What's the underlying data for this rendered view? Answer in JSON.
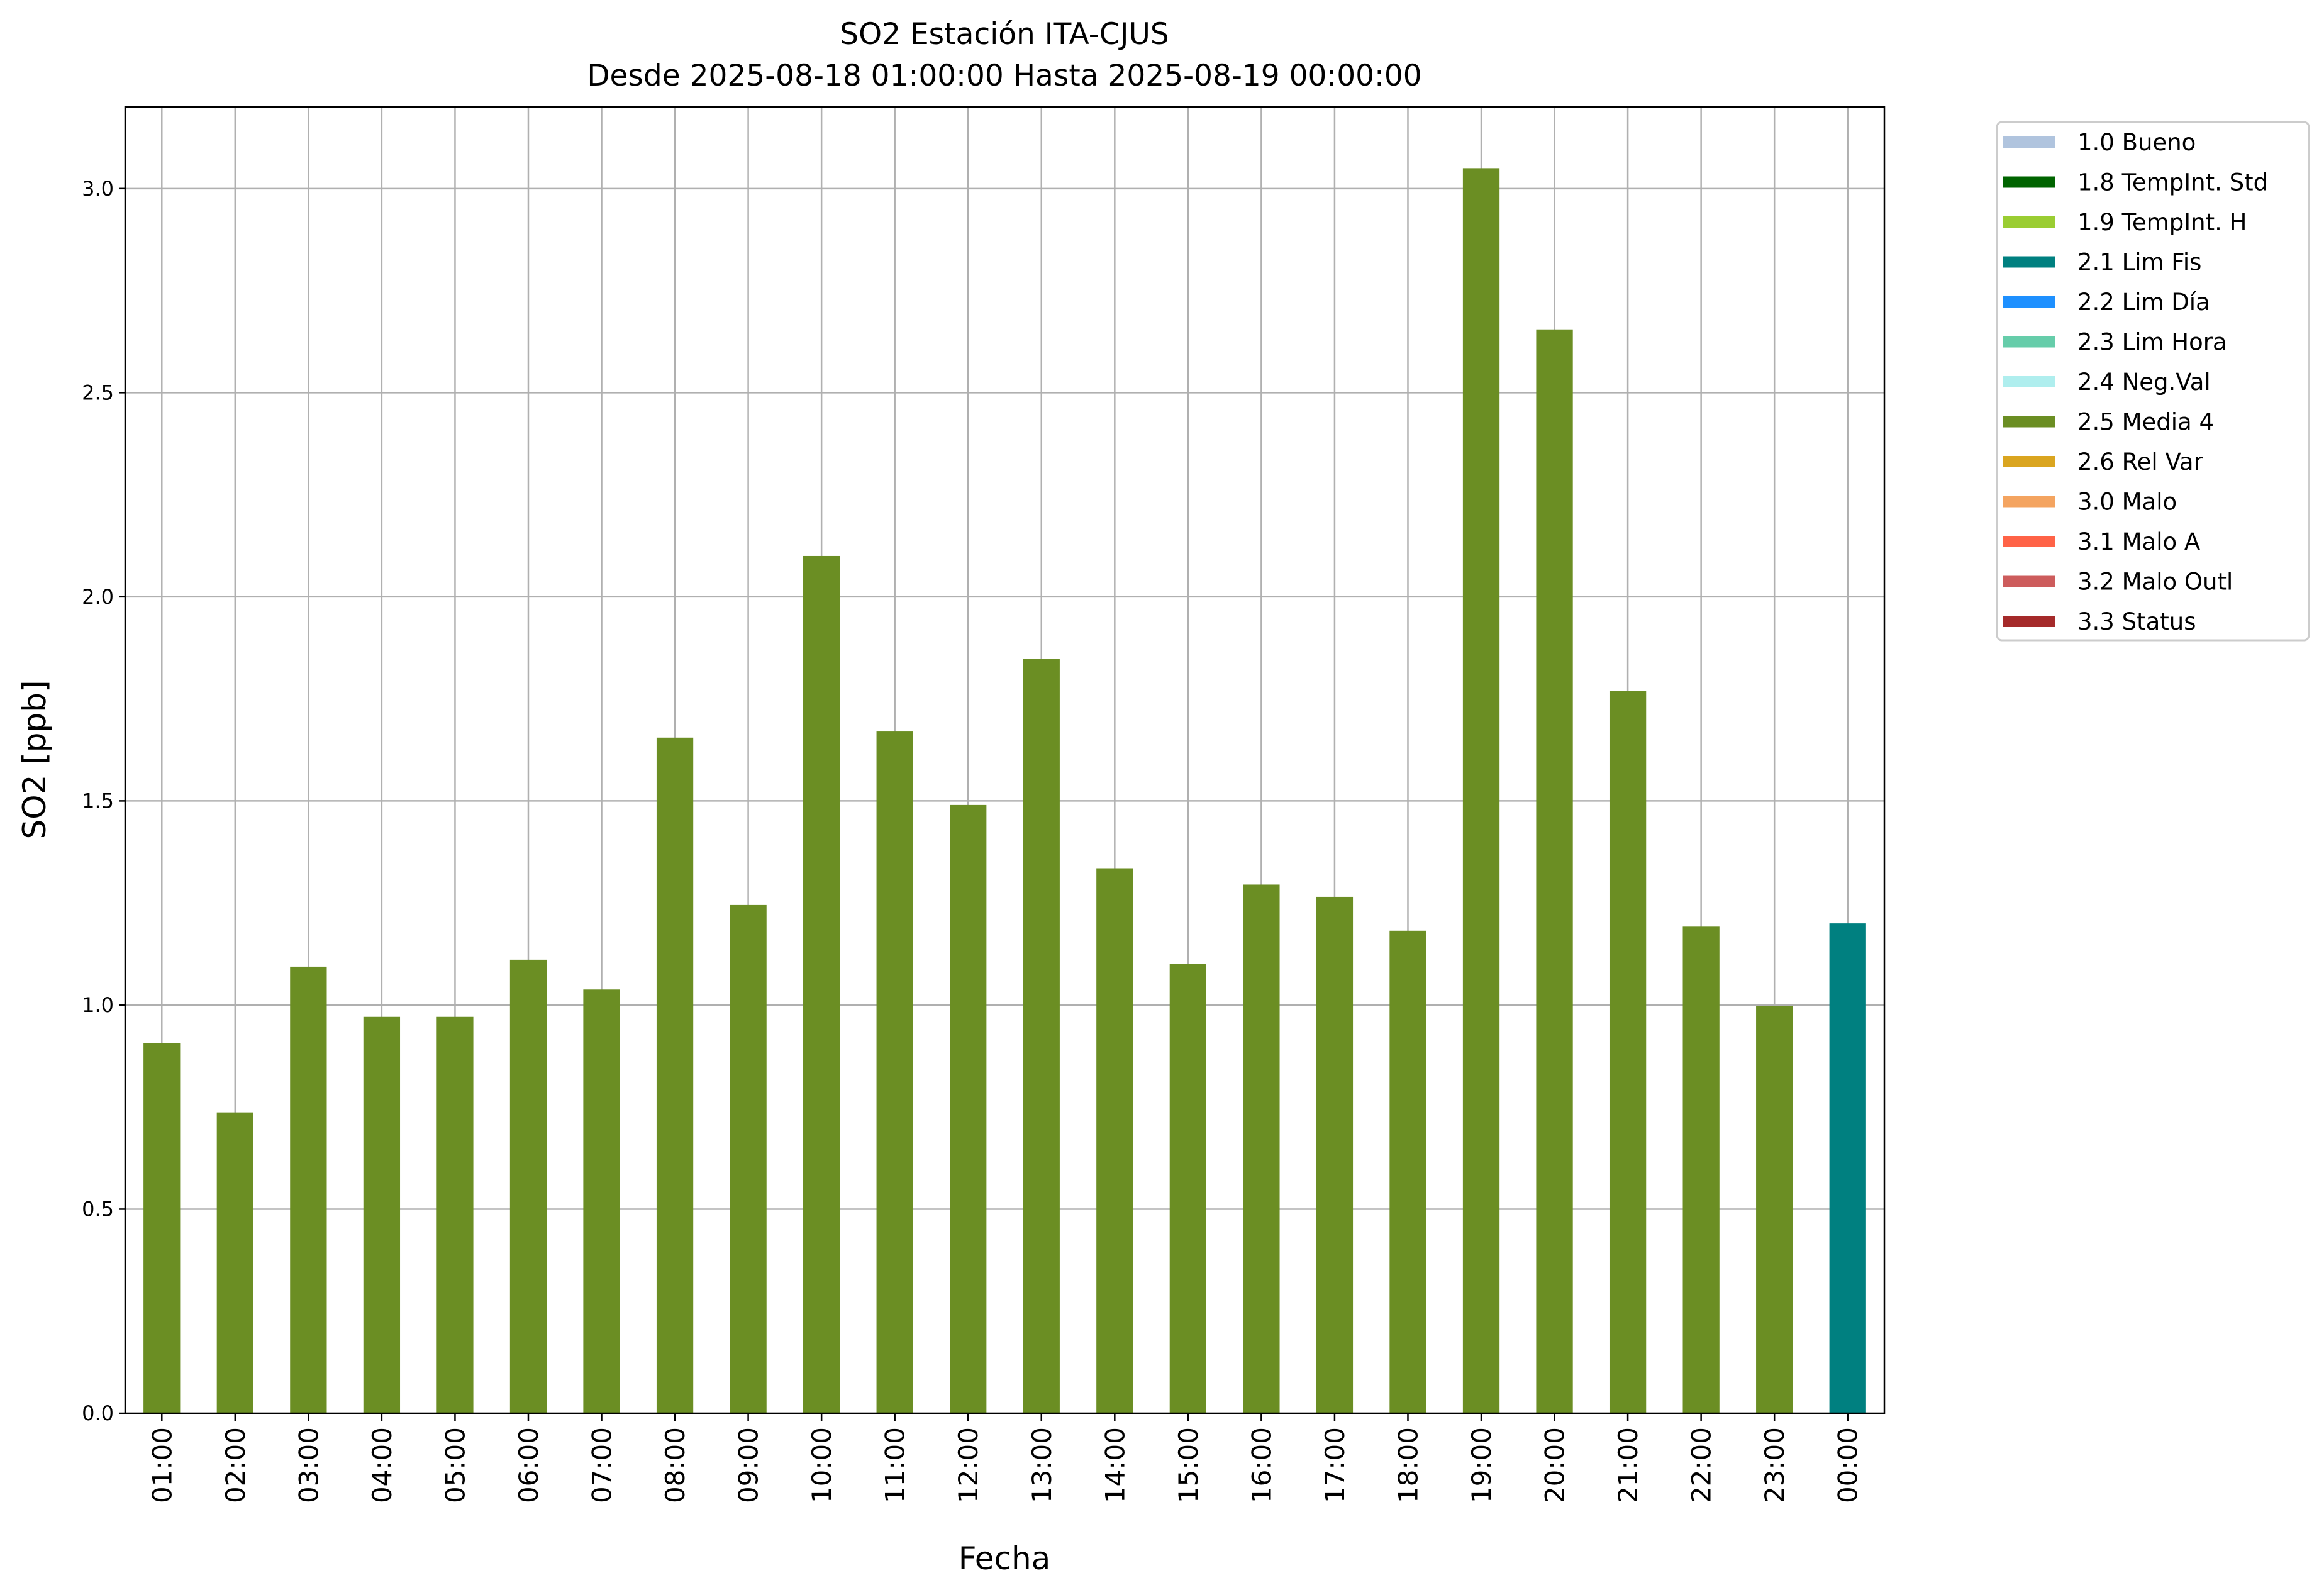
{
  "chart_data": {
    "type": "bar",
    "title": "SO2 Estación ITA-CJUS",
    "subtitle": "Desde 2025-08-18 01:00:00 Hasta 2025-08-19 00:00:00",
    "xlabel": "Fecha",
    "ylabel": "SO2 [ppb]",
    "ylim": [
      0,
      3.2
    ],
    "yticks": [
      "0.0",
      "0.5",
      "1.0",
      "1.5",
      "2.0",
      "2.5",
      "3.0"
    ],
    "grid": true,
    "legend_position": "outside-top-right",
    "categories": [
      "01:00",
      "02:00",
      "03:00",
      "04:00",
      "05:00",
      "06:00",
      "07:00",
      "08:00",
      "09:00",
      "10:00",
      "11:00",
      "12:00",
      "13:00",
      "14:00",
      "15:00",
      "16:00",
      "17:00",
      "18:00",
      "19:00",
      "20:00",
      "21:00",
      "22:00",
      "23:00",
      "00:00"
    ],
    "values": [
      0.906,
      0.737,
      1.094,
      0.971,
      0.971,
      1.111,
      1.038,
      1.655,
      1.245,
      2.1,
      1.67,
      1.49,
      1.848,
      1.335,
      1.101,
      1.295,
      1.265,
      1.182,
      3.05,
      2.655,
      1.77,
      1.192,
      0.998,
      1.2
    ],
    "flags": [
      "2.5 Media 4",
      "2.5 Media 4",
      "2.5 Media 4",
      "2.5 Media 4",
      "2.5 Media 4",
      "2.5 Media 4",
      "2.5 Media 4",
      "2.5 Media 4",
      "2.5 Media 4",
      "2.5 Media 4",
      "2.5 Media 4",
      "2.5 Media 4",
      "2.5 Media 4",
      "2.5 Media 4",
      "2.5 Media 4",
      "2.5 Media 4",
      "2.5 Media 4",
      "2.5 Media 4",
      "2.5 Media 4",
      "2.5 Media 4",
      "2.5 Media 4",
      "2.5 Media 4",
      "2.5 Media 4",
      "2.1 Lim Fis"
    ],
    "legend": [
      {
        "label": "1.0 Bueno",
        "color": "#b0c4de"
      },
      {
        "label": "1.8 TempInt. Std",
        "color": "#006400"
      },
      {
        "label": "1.9 TempInt. H",
        "color": "#9acd32"
      },
      {
        "label": "2.1 Lim Fis",
        "color": "#008080"
      },
      {
        "label": "2.2 Lim Día",
        "color": "#1e90ff"
      },
      {
        "label": "2.3 Lim Hora",
        "color": "#66cdaa"
      },
      {
        "label": "2.4 Neg.Val",
        "color": "#afeeee"
      },
      {
        "label": "2.5 Media 4",
        "color": "#6b8e23"
      },
      {
        "label": "2.6 Rel Var",
        "color": "#daa520"
      },
      {
        "label": "3.0 Malo",
        "color": "#f4a460"
      },
      {
        "label": "3.1 Malo A",
        "color": "#ff6347"
      },
      {
        "label": "3.2 Malo Outl",
        "color": "#cd5c5c"
      },
      {
        "label": "3.3 Status",
        "color": "#a52a2a"
      }
    ]
  }
}
